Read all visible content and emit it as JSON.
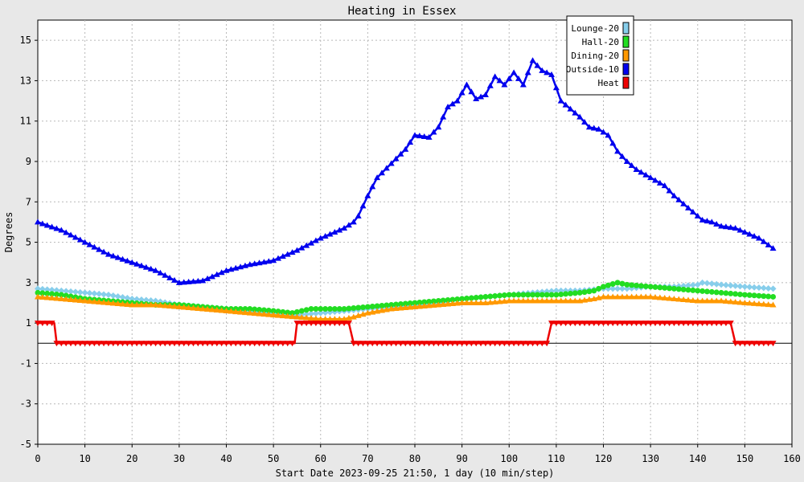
{
  "chart_data": {
    "type": "line",
    "title": "Heating in Essex",
    "xlabel": "Start Date 2023-09-25 21:50, 1 day (10 min/step)",
    "ylabel": "Degrees",
    "xlim": [
      0,
      160
    ],
    "ylim": [
      -5,
      16
    ],
    "xticks": [
      0,
      10,
      20,
      30,
      40,
      50,
      60,
      70,
      80,
      90,
      100,
      110,
      120,
      130,
      140,
      150,
      160
    ],
    "yticks": [
      -5,
      -3,
      -1,
      1,
      3,
      5,
      7,
      9,
      11,
      13,
      15
    ],
    "grid": true,
    "legend_position": "top-right",
    "series": [
      {
        "name": "Lounge-20",
        "color": "#87ceeb",
        "marker": "diamond",
        "x": [
          0,
          5,
          10,
          15,
          20,
          25,
          30,
          35,
          40,
          45,
          50,
          55,
          60,
          65,
          70,
          75,
          80,
          85,
          90,
          95,
          100,
          105,
          110,
          115,
          120,
          125,
          130,
          135,
          140,
          141,
          145,
          150,
          156
        ],
        "y": [
          2.7,
          2.6,
          2.5,
          2.4,
          2.2,
          2.1,
          1.9,
          1.8,
          1.7,
          1.6,
          1.5,
          1.4,
          1.5,
          1.6,
          1.7,
          1.8,
          1.9,
          2.0,
          2.2,
          2.3,
          2.4,
          2.5,
          2.6,
          2.6,
          2.7,
          2.7,
          2.8,
          2.8,
          2.9,
          3.0,
          2.9,
          2.8,
          2.7
        ]
      },
      {
        "name": "Hall-20",
        "color": "#22dd22",
        "marker": "circle",
        "x": [
          0,
          5,
          10,
          15,
          20,
          25,
          30,
          35,
          40,
          45,
          50,
          54,
          56,
          58,
          60,
          65,
          70,
          75,
          80,
          85,
          90,
          95,
          100,
          105,
          110,
          115,
          118,
          120,
          123,
          125,
          130,
          135,
          140,
          145,
          150,
          156
        ],
        "y": [
          2.5,
          2.4,
          2.2,
          2.1,
          2.0,
          1.9,
          1.9,
          1.8,
          1.7,
          1.7,
          1.6,
          1.5,
          1.6,
          1.7,
          1.7,
          1.7,
          1.8,
          1.9,
          2.0,
          2.1,
          2.2,
          2.3,
          2.4,
          2.4,
          2.4,
          2.5,
          2.6,
          2.8,
          3.0,
          2.9,
          2.8,
          2.7,
          2.6,
          2.5,
          2.4,
          2.3
        ]
      },
      {
        "name": "Dining-20",
        "color": "#ff9900",
        "marker": "triangle-up",
        "x": [
          0,
          5,
          10,
          15,
          20,
          25,
          30,
          35,
          40,
          45,
          50,
          55,
          60,
          65,
          67,
          70,
          75,
          80,
          85,
          90,
          95,
          100,
          105,
          110,
          115,
          118,
          120,
          125,
          130,
          135,
          140,
          145,
          150,
          156
        ],
        "y": [
          2.3,
          2.2,
          2.1,
          2.0,
          1.9,
          1.9,
          1.8,
          1.7,
          1.6,
          1.5,
          1.4,
          1.3,
          1.2,
          1.2,
          1.3,
          1.5,
          1.7,
          1.8,
          1.9,
          2.0,
          2.0,
          2.1,
          2.1,
          2.1,
          2.1,
          2.2,
          2.3,
          2.3,
          2.3,
          2.2,
          2.1,
          2.1,
          2.0,
          1.9
        ]
      },
      {
        "name": "Outside-10",
        "color": "#0000ee",
        "marker": "triangle-up",
        "x": [
          0,
          5,
          10,
          15,
          20,
          25,
          30,
          35,
          40,
          45,
          50,
          55,
          60,
          65,
          67,
          68,
          70,
          72,
          75,
          78,
          80,
          83,
          85,
          87,
          89,
          91,
          93,
          95,
          97,
          99,
          101,
          103,
          105,
          107,
          109,
          111,
          113,
          115,
          117,
          119,
          121,
          123,
          125,
          127,
          130,
          133,
          135,
          138,
          141,
          143,
          145,
          148,
          150,
          153,
          156
        ],
        "y": [
          6.0,
          5.6,
          5.0,
          4.4,
          4.0,
          3.6,
          3.0,
          3.1,
          3.6,
          3.9,
          4.1,
          4.6,
          5.2,
          5.7,
          6.0,
          6.3,
          7.3,
          8.2,
          8.9,
          9.6,
          10.3,
          10.2,
          10.7,
          11.7,
          12.0,
          12.8,
          12.1,
          12.3,
          13.2,
          12.8,
          13.4,
          12.8,
          14.0,
          13.5,
          13.3,
          12.0,
          11.6,
          11.2,
          10.7,
          10.6,
          10.3,
          9.5,
          9.0,
          8.6,
          8.2,
          7.8,
          7.3,
          6.7,
          6.1,
          6.0,
          5.8,
          5.7,
          5.5,
          5.2,
          4.7
        ]
      },
      {
        "name": "Heat",
        "color": "#ee0000",
        "marker": "triangle-down",
        "x": [
          0,
          3.5,
          4,
          54.5,
          55,
          66,
          67,
          108,
          109,
          147,
          148,
          156
        ],
        "y": [
          1,
          1,
          0,
          0,
          1,
          1,
          0,
          0,
          1,
          1,
          0,
          0
        ]
      }
    ]
  }
}
